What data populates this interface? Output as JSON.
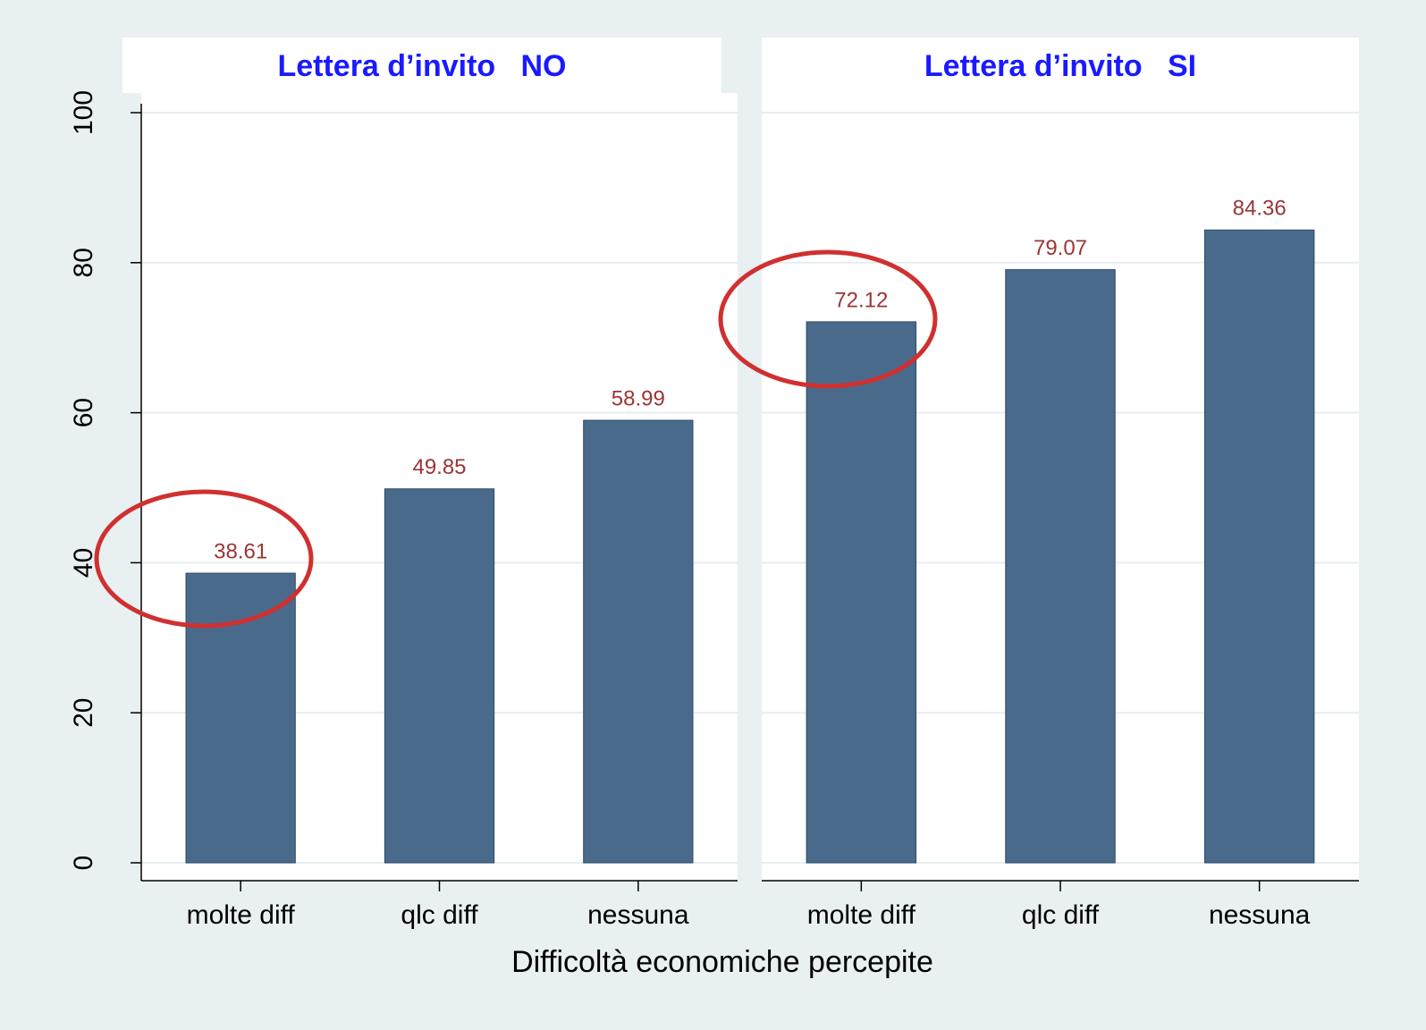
{
  "chart_data": [
    {
      "type": "bar",
      "title": "Lettera d’invito   NO",
      "categories": [
        "molte diff",
        "qlc diff",
        "nessuna"
      ],
      "values": [
        38.61,
        49.85,
        58.99
      ],
      "color": "#4a6a8b",
      "ylim": [
        0,
        100
      ],
      "yticks": [
        0,
        20,
        40,
        60,
        80,
        100
      ],
      "grid": true,
      "xlabel": "Difficoltà economiche percepite"
    },
    {
      "type": "bar",
      "title": "Lettera d’invito   SI",
      "categories": [
        "molte diff",
        "qlc diff",
        "nessuna"
      ],
      "values": [
        72.12,
        79.07,
        84.36
      ],
      "color": "#4a6a8b",
      "ylim": [
        0,
        100
      ],
      "yticks": [
        0,
        20,
        40,
        60,
        80,
        100
      ],
      "grid": true
    }
  ]
}
